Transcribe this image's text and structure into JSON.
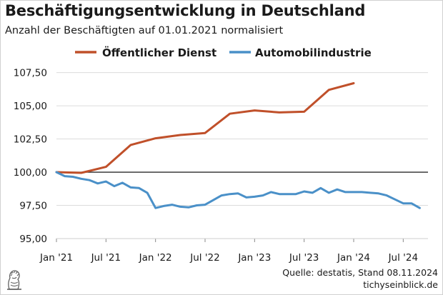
{
  "header": {
    "title": "Beschäftigungsentwicklung in Deutschland",
    "subtitle": "Anzahl der Beschäftigten auf 01.01.2021 normalisiert"
  },
  "footer": {
    "source": "Quelle: destatis, Stand 08.11.2024",
    "site": "tichyseinblick.de"
  },
  "chart_data": {
    "type": "line",
    "title": "Beschäftigungsentwicklung in Deutschland",
    "subtitle": "Anzahl der Beschäftigten auf 01.01.2021 normalisiert",
    "xlabel": "",
    "ylabel": "",
    "ylim": [
      95,
      108.5
    ],
    "yticks": [
      95,
      97.5,
      100,
      102.5,
      105,
      107.5
    ],
    "ytick_labels": [
      "95,00",
      "97,50",
      "100,00",
      "102,50",
      "105,00",
      "107,50"
    ],
    "xlim": [
      "2021-01",
      "2024-10"
    ],
    "xticks": [
      "2021-01",
      "2021-07",
      "2022-01",
      "2022-07",
      "2023-01",
      "2023-07",
      "2024-01",
      "2024-07"
    ],
    "xtick_labels": [
      "Jan '21",
      "Jul '21",
      "Jan '22",
      "Jul '22",
      "Jan '23",
      "Jul '23",
      "Jan '24",
      "Jul '24"
    ],
    "reference_line": 100,
    "grid": {
      "horizontal": true,
      "vertical": false
    },
    "legend": {
      "position": "top-center"
    },
    "series": [
      {
        "name": "Öffentlicher Dienst",
        "color": "#c0502a",
        "points": [
          [
            "2021-01",
            100.0
          ],
          [
            "2021-04",
            99.95
          ],
          [
            "2021-07",
            100.4
          ],
          [
            "2021-10",
            102.05
          ],
          [
            "2022-01",
            102.55
          ],
          [
            "2022-04",
            102.8
          ],
          [
            "2022-07",
            102.95
          ],
          [
            "2022-10",
            104.4
          ],
          [
            "2023-01",
            104.65
          ],
          [
            "2023-04",
            104.5
          ],
          [
            "2023-07",
            104.55
          ],
          [
            "2023-10",
            106.2
          ],
          [
            "2024-01",
            106.7
          ]
        ]
      },
      {
        "name": "Automobilindustrie",
        "color": "#4a90c8",
        "points": [
          [
            "2021-01",
            100.0
          ],
          [
            "2021-02",
            99.7
          ],
          [
            "2021-03",
            99.65
          ],
          [
            "2021-04",
            99.5
          ],
          [
            "2021-05",
            99.4
          ],
          [
            "2021-06",
            99.15
          ],
          [
            "2021-07",
            99.3
          ],
          [
            "2021-08",
            98.95
          ],
          [
            "2021-09",
            99.2
          ],
          [
            "2021-10",
            98.85
          ],
          [
            "2021-11",
            98.8
          ],
          [
            "2021-12",
            98.45
          ],
          [
            "2022-01",
            97.3
          ],
          [
            "2022-02",
            97.45
          ],
          [
            "2022-03",
            97.55
          ],
          [
            "2022-04",
            97.4
          ],
          [
            "2022-05",
            97.35
          ],
          [
            "2022-06",
            97.5
          ],
          [
            "2022-07",
            97.55
          ],
          [
            "2022-08",
            97.9
          ],
          [
            "2022-09",
            98.25
          ],
          [
            "2022-10",
            98.35
          ],
          [
            "2022-11",
            98.4
          ],
          [
            "2022-12",
            98.1
          ],
          [
            "2023-01",
            98.15
          ],
          [
            "2023-02",
            98.25
          ],
          [
            "2023-03",
            98.5
          ],
          [
            "2023-04",
            98.35
          ],
          [
            "2023-05",
            98.35
          ],
          [
            "2023-06",
            98.35
          ],
          [
            "2023-07",
            98.55
          ],
          [
            "2023-08",
            98.45
          ],
          [
            "2023-09",
            98.8
          ],
          [
            "2023-10",
            98.45
          ],
          [
            "2023-11",
            98.7
          ],
          [
            "2023-12",
            98.5
          ],
          [
            "2024-01",
            98.5
          ],
          [
            "2024-02",
            98.5
          ],
          [
            "2024-03",
            98.45
          ],
          [
            "2024-04",
            98.4
          ],
          [
            "2024-05",
            98.25
          ],
          [
            "2024-06",
            97.95
          ],
          [
            "2024-07",
            97.65
          ],
          [
            "2024-08",
            97.65
          ],
          [
            "2024-09",
            97.3
          ]
        ]
      }
    ]
  }
}
